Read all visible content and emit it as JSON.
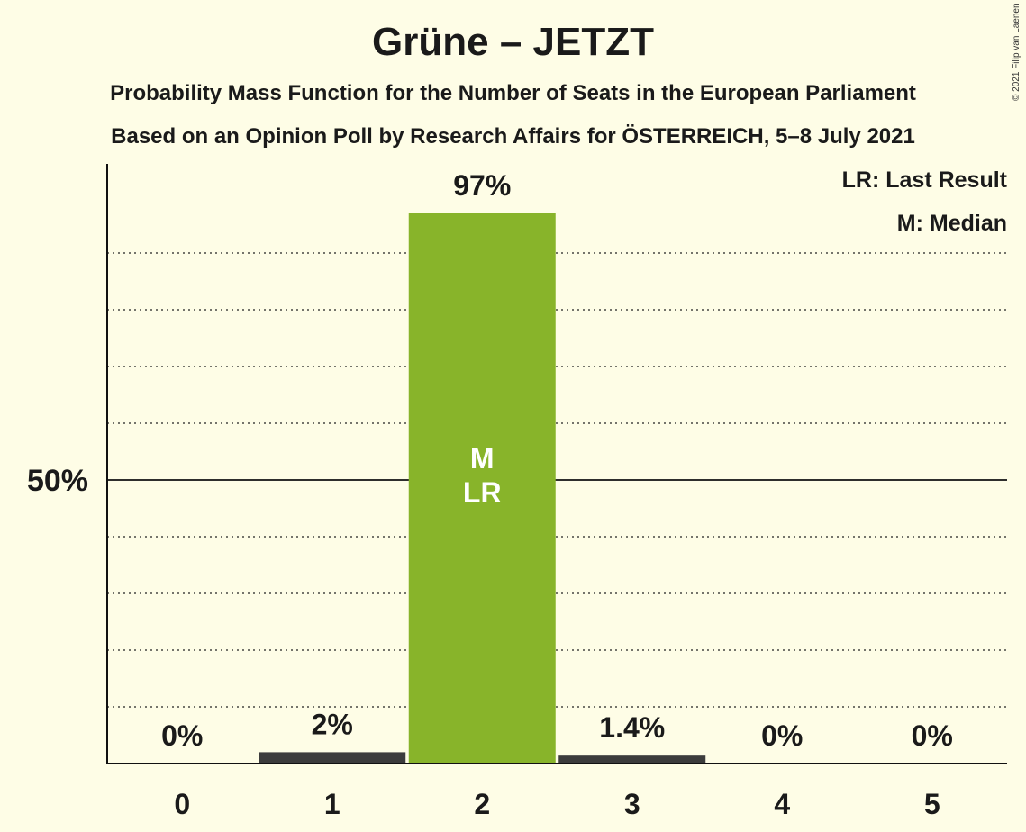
{
  "title": "Grüne – JETZT",
  "subtitle": "Probability Mass Function for the Number of Seats in the European Parliament",
  "subtitle2": "Based on an Opinion Poll by Research Affairs for ÖSTERREICH, 5–8 July 2021",
  "copyright": "© 2021 Filip van Laenen",
  "legend": {
    "last_result": "LR: Last Result",
    "median": "M: Median"
  },
  "colors": {
    "background": "#fefde6",
    "bar_party": "#88b42a",
    "bar_other": "#3c3c3c",
    "text": "#1a1a1a"
  },
  "chart_data": {
    "type": "bar",
    "categories": [
      "0",
      "1",
      "2",
      "3",
      "4",
      "5"
    ],
    "values": [
      0,
      2,
      97,
      1.4,
      0,
      0
    ],
    "value_labels": [
      "0%",
      "2%",
      "97%",
      "1.4%",
      "0%",
      "0%"
    ],
    "median_seat": "2",
    "last_result_seat": "2",
    "bar_markers": {
      "2": [
        "M",
        "LR"
      ]
    },
    "ytick_label": "50%",
    "ytick_value": 50,
    "ylim": [
      0,
      105
    ],
    "grid": "dotted every 10%",
    "legend_position": "top-right"
  }
}
